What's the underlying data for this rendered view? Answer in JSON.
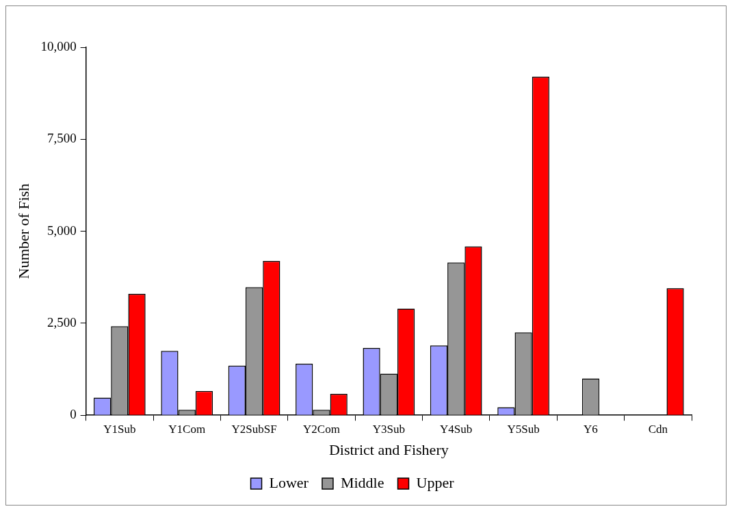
{
  "chart_data": {
    "type": "bar",
    "xlabel": "District and Fishery",
    "ylabel": "Number of Fish",
    "categories": [
      "Y1Sub",
      "Y1Com",
      "Y2SubSF",
      "Y2Com",
      "Y3Sub",
      "Y4Sub",
      "Y5Sub",
      "Y6",
      "Cdn"
    ],
    "series": [
      {
        "name": "Lower",
        "color": "#9999ff",
        "values": [
          480,
          1750,
          1350,
          1400,
          1830,
          1900,
          220,
          null,
          null
        ]
      },
      {
        "name": "Middle",
        "color": "#969696",
        "values": [
          2420,
          150,
          3480,
          150,
          1130,
          4150,
          2250,
          1000,
          null
        ]
      },
      {
        "name": "Upper",
        "color": "#ff0000",
        "values": [
          3300,
          660,
          4190,
          580,
          2900,
          4590,
          9200,
          null,
          3450
        ]
      }
    ],
    "ylim": [
      0,
      10000
    ],
    "yticks": [
      {
        "value": 0,
        "label": "0"
      },
      {
        "value": 2500,
        "label": "2,500"
      },
      {
        "value": 5000,
        "label": "5,000"
      },
      {
        "value": 7500,
        "label": "7,500"
      },
      {
        "value": 10000,
        "label": "10,000"
      }
    ],
    "grid": false,
    "legend": "bottom"
  }
}
